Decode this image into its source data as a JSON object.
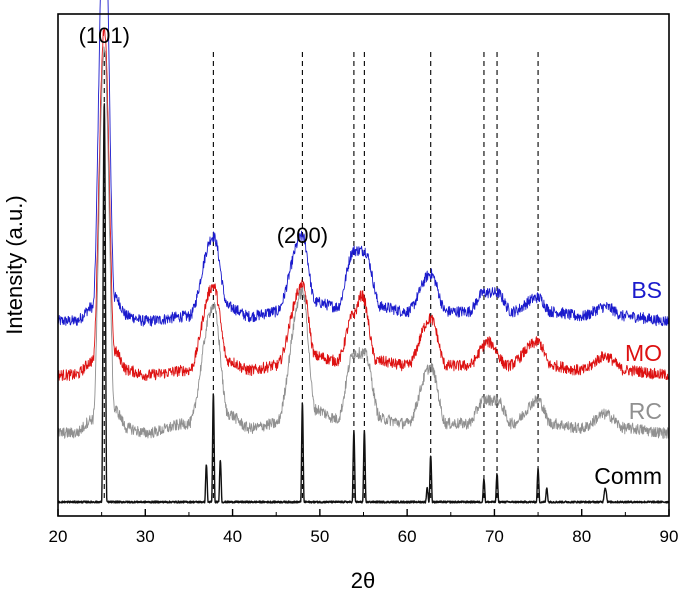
{
  "chart_data": {
    "type": "line",
    "title": "",
    "xlabel": "2θ",
    "ylabel": "Intensity (a.u.)",
    "xlim": [
      20,
      90
    ],
    "xticks": [
      20,
      30,
      40,
      50,
      60,
      70,
      80,
      90
    ],
    "yticks_shown": false,
    "grid": false,
    "legend": "inline labels at right end of each trace",
    "peak_labels": [
      {
        "text": "(101)",
        "two_theta": 25.3
      },
      {
        "text": "(200)",
        "two_theta": 48.0
      }
    ],
    "reference_lines": [
      25.3,
      37.8,
      48.0,
      53.9,
      55.1,
      62.7,
      68.8,
      70.3,
      75.0
    ],
    "series": [
      {
        "name": "BS",
        "color": "#1a1acc",
        "noise": 0.012,
        "points": [
          [
            20,
            0.0
          ],
          [
            22,
            0.0
          ],
          [
            24,
            0.03
          ],
          [
            25.3,
            0.93
          ],
          [
            26.5,
            0.05
          ],
          [
            28,
            0.01
          ],
          [
            30,
            0.0
          ],
          [
            35,
            0.01
          ],
          [
            37.8,
            0.18
          ],
          [
            39.5,
            0.03
          ],
          [
            42,
            0.01
          ],
          [
            45,
            0.02
          ],
          [
            48.0,
            0.18
          ],
          [
            49.5,
            0.04
          ],
          [
            52,
            0.03
          ],
          [
            53.9,
            0.15
          ],
          [
            55.1,
            0.15
          ],
          [
            57,
            0.03
          ],
          [
            60,
            0.02
          ],
          [
            62.7,
            0.1
          ],
          [
            64.5,
            0.02
          ],
          [
            67,
            0.02
          ],
          [
            68.8,
            0.06
          ],
          [
            70.3,
            0.06
          ],
          [
            72,
            0.02
          ],
          [
            75.0,
            0.05
          ],
          [
            76.5,
            0.02
          ],
          [
            80,
            0.01
          ],
          [
            82.7,
            0.03
          ],
          [
            85,
            0.01
          ],
          [
            90,
            0.0
          ]
        ]
      },
      {
        "name": "MO",
        "color": "#dd1111",
        "noise": 0.012,
        "points": [
          [
            20,
            0.0
          ],
          [
            22,
            0.0
          ],
          [
            24,
            0.03
          ],
          [
            25.3,
            0.74
          ],
          [
            26.5,
            0.05
          ],
          [
            28,
            0.01
          ],
          [
            30,
            0.0
          ],
          [
            35,
            0.01
          ],
          [
            37.8,
            0.19
          ],
          [
            39.5,
            0.03
          ],
          [
            42,
            0.01
          ],
          [
            45,
            0.02
          ],
          [
            48.0,
            0.19
          ],
          [
            49.5,
            0.04
          ],
          [
            52,
            0.03
          ],
          [
            53.9,
            0.13
          ],
          [
            54.8,
            0.17
          ],
          [
            56.5,
            0.03
          ],
          [
            60,
            0.02
          ],
          [
            62.7,
            0.12
          ],
          [
            64.5,
            0.02
          ],
          [
            67,
            0.02
          ],
          [
            69.3,
            0.07
          ],
          [
            71.5,
            0.02
          ],
          [
            75.0,
            0.07
          ],
          [
            76.5,
            0.02
          ],
          [
            80,
            0.01
          ],
          [
            82.7,
            0.04
          ],
          [
            85,
            0.01
          ],
          [
            90,
            0.0
          ]
        ]
      },
      {
        "name": "RC",
        "color": "#909090",
        "noise": 0.012,
        "points": [
          [
            20,
            0.0
          ],
          [
            22,
            0.0
          ],
          [
            24,
            0.03
          ],
          [
            25.3,
            0.82
          ],
          [
            26.5,
            0.05
          ],
          [
            28,
            0.01
          ],
          [
            30,
            0.0
          ],
          [
            35,
            0.02
          ],
          [
            37.8,
            0.27
          ],
          [
            39.5,
            0.04
          ],
          [
            42,
            0.01
          ],
          [
            45,
            0.02
          ],
          [
            48.0,
            0.3
          ],
          [
            49.5,
            0.05
          ],
          [
            52,
            0.03
          ],
          [
            53.9,
            0.17
          ],
          [
            55.1,
            0.17
          ],
          [
            57,
            0.03
          ],
          [
            60,
            0.02
          ],
          [
            62.7,
            0.14
          ],
          [
            64.5,
            0.02
          ],
          [
            67,
            0.02
          ],
          [
            68.8,
            0.07
          ],
          [
            70.3,
            0.07
          ],
          [
            72,
            0.02
          ],
          [
            75.0,
            0.07
          ],
          [
            76.5,
            0.02
          ],
          [
            80,
            0.01
          ],
          [
            82.7,
            0.04
          ],
          [
            85,
            0.01
          ],
          [
            90,
            0.0
          ]
        ]
      },
      {
        "name": "Comm",
        "color": "#111111",
        "noise": 0.002,
        "points": [
          [
            20,
            0.0
          ],
          [
            25.0,
            0.0
          ],
          [
            25.3,
            0.85
          ],
          [
            25.6,
            0.0
          ],
          [
            36.8,
            0.0
          ],
          [
            37.0,
            0.08
          ],
          [
            37.2,
            0.0
          ],
          [
            37.6,
            0.0
          ],
          [
            37.8,
            0.23
          ],
          [
            38.0,
            0.0
          ],
          [
            38.4,
            0.0
          ],
          [
            38.6,
            0.09
          ],
          [
            38.8,
            0.0
          ],
          [
            47.8,
            0.0
          ],
          [
            48.0,
            0.21
          ],
          [
            48.2,
            0.0
          ],
          [
            53.7,
            0.0
          ],
          [
            53.9,
            0.15
          ],
          [
            54.1,
            0.0
          ],
          [
            54.9,
            0.0
          ],
          [
            55.1,
            0.15
          ],
          [
            55.3,
            0.0
          ],
          [
            62.1,
            0.0
          ],
          [
            62.3,
            0.03
          ],
          [
            62.5,
            0.0
          ],
          [
            62.7,
            0.1
          ],
          [
            62.9,
            0.0
          ],
          [
            68.6,
            0.0
          ],
          [
            68.8,
            0.05
          ],
          [
            69.0,
            0.0
          ],
          [
            70.1,
            0.0
          ],
          [
            70.3,
            0.06
          ],
          [
            70.5,
            0.0
          ],
          [
            74.8,
            0.0
          ],
          [
            75.0,
            0.07
          ],
          [
            75.2,
            0.0
          ],
          [
            75.8,
            0.0
          ],
          [
            76.0,
            0.03
          ],
          [
            76.2,
            0.0
          ],
          [
            82.4,
            0.0
          ],
          [
            82.7,
            0.03
          ],
          [
            83.0,
            0.0
          ],
          [
            90,
            0.0
          ]
        ]
      }
    ]
  }
}
